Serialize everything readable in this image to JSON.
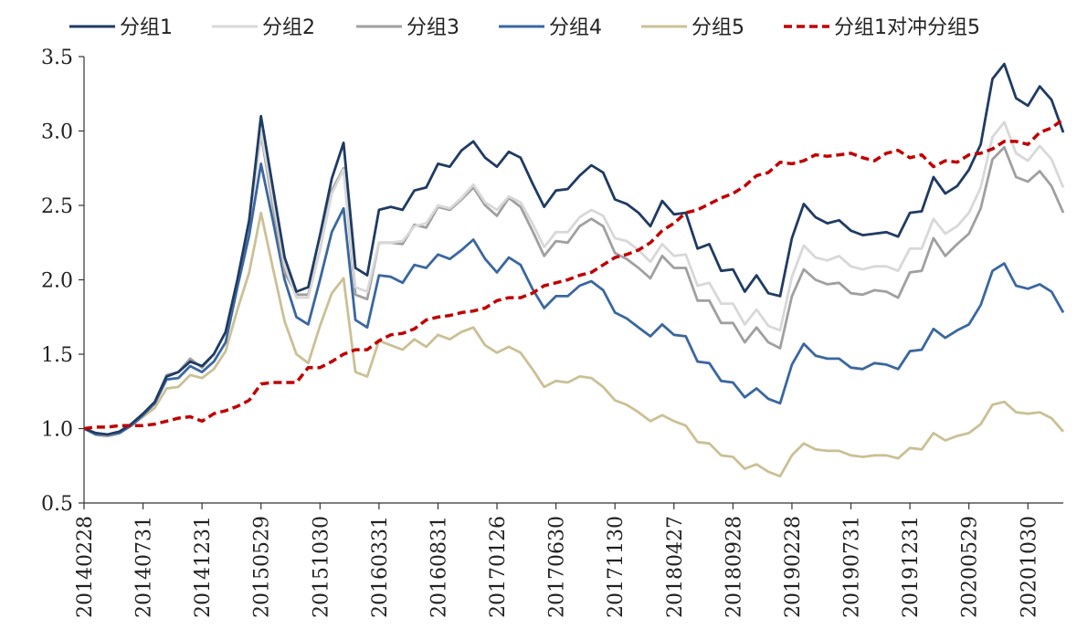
{
  "chart_data": {
    "type": "line",
    "title": "",
    "xlabel": "",
    "ylabel": "",
    "ylim": [
      0.5,
      3.5
    ],
    "yticks": [
      "0.5",
      "1.0",
      "1.5",
      "2.0",
      "2.5",
      "3.0",
      "3.5"
    ],
    "ytick_values": [
      0.5,
      1.0,
      1.5,
      2.0,
      2.5,
      3.0,
      3.5
    ],
    "xtick_labels": [
      "20140228",
      "20140731",
      "20141231",
      "20150529",
      "20151030",
      "20160331",
      "20160831",
      "20170126",
      "20170630",
      "20171130",
      "20180427",
      "20180928",
      "20190228",
      "20190731",
      "20191231",
      "20200529",
      "20201030"
    ],
    "xtick_index": [
      0,
      5,
      10,
      15,
      20,
      25,
      30,
      35,
      40,
      45,
      50,
      55,
      60,
      65,
      70,
      75,
      80
    ],
    "n_points": 84,
    "legend_position": "top",
    "grid": false,
    "series": [
      {
        "name": "分组1",
        "color": "#1f3b63",
        "dash": "solid",
        "values": [
          1.0,
          0.97,
          0.96,
          0.98,
          1.03,
          1.1,
          1.18,
          1.35,
          1.38,
          1.45,
          1.42,
          1.5,
          1.65,
          2.0,
          2.4,
          3.1,
          2.62,
          2.15,
          1.92,
          1.95,
          2.3,
          2.68,
          2.92,
          2.08,
          2.03,
          2.47,
          2.49,
          2.47,
          2.6,
          2.62,
          2.78,
          2.76,
          2.87,
          2.93,
          2.82,
          2.76,
          2.86,
          2.82,
          2.65,
          2.49,
          2.6,
          2.61,
          2.7,
          2.77,
          2.72,
          2.54,
          2.51,
          2.45,
          2.36,
          2.53,
          2.44,
          2.45,
          2.21,
          2.24,
          2.06,
          2.07,
          1.92,
          2.03,
          1.91,
          1.89,
          2.28,
          2.51,
          2.42,
          2.38,
          2.4,
          2.33,
          2.3,
          2.31,
          2.32,
          2.29,
          2.45,
          2.46,
          2.69,
          2.58,
          2.63,
          2.74,
          2.91,
          3.35,
          3.45,
          3.22,
          3.17,
          3.3,
          3.21,
          2.99
        ]
      },
      {
        "name": "分组2",
        "color": "#d8d8d8",
        "dash": "solid",
        "values": [
          1.0,
          0.97,
          0.96,
          0.98,
          1.03,
          1.1,
          1.18,
          1.35,
          1.38,
          1.45,
          1.42,
          1.5,
          1.65,
          2.0,
          2.4,
          3.0,
          2.55,
          2.1,
          1.88,
          1.88,
          2.2,
          2.58,
          2.74,
          1.95,
          1.92,
          2.25,
          2.25,
          2.26,
          2.36,
          2.38,
          2.5,
          2.48,
          2.55,
          2.64,
          2.52,
          2.47,
          2.56,
          2.52,
          2.38,
          2.22,
          2.32,
          2.32,
          2.42,
          2.47,
          2.43,
          2.28,
          2.26,
          2.2,
          2.12,
          2.24,
          2.16,
          2.17,
          1.96,
          1.98,
          1.84,
          1.84,
          1.7,
          1.8,
          1.69,
          1.66,
          2.02,
          2.23,
          2.15,
          2.13,
          2.16,
          2.09,
          2.07,
          2.09,
          2.09,
          2.06,
          2.21,
          2.21,
          2.41,
          2.31,
          2.36,
          2.45,
          2.62,
          2.96,
          3.06,
          2.85,
          2.8,
          2.9,
          2.81,
          2.62
        ]
      },
      {
        "name": "分组3",
        "color": "#a0a0a0",
        "dash": "solid",
        "values": [
          1.0,
          0.97,
          0.95,
          0.98,
          1.03,
          1.1,
          1.18,
          1.36,
          1.38,
          1.47,
          1.41,
          1.5,
          1.65,
          2.0,
          2.4,
          2.98,
          2.5,
          2.05,
          1.9,
          1.9,
          2.2,
          2.6,
          2.75,
          1.9,
          1.87,
          2.25,
          2.25,
          2.24,
          2.37,
          2.35,
          2.49,
          2.47,
          2.54,
          2.62,
          2.5,
          2.43,
          2.55,
          2.49,
          2.33,
          2.16,
          2.26,
          2.25,
          2.36,
          2.41,
          2.36,
          2.18,
          2.14,
          2.08,
          2.01,
          2.16,
          2.08,
          2.08,
          1.86,
          1.86,
          1.71,
          1.71,
          1.58,
          1.68,
          1.58,
          1.54,
          1.89,
          2.07,
          2.0,
          1.97,
          1.98,
          1.91,
          1.9,
          1.93,
          1.92,
          1.88,
          2.05,
          2.06,
          2.28,
          2.16,
          2.24,
          2.31,
          2.48,
          2.81,
          2.89,
          2.69,
          2.66,
          2.73,
          2.63,
          2.45
        ]
      },
      {
        "name": "分组4",
        "color": "#3a67a0",
        "dash": "solid",
        "values": [
          1.0,
          0.96,
          0.95,
          0.97,
          1.02,
          1.09,
          1.17,
          1.33,
          1.34,
          1.42,
          1.38,
          1.45,
          1.58,
          1.95,
          2.3,
          2.78,
          2.4,
          2.0,
          1.75,
          1.7,
          2.0,
          2.32,
          2.48,
          1.73,
          1.68,
          2.03,
          2.02,
          1.98,
          2.1,
          2.08,
          2.17,
          2.14,
          2.2,
          2.27,
          2.14,
          2.05,
          2.15,
          2.1,
          1.94,
          1.81,
          1.89,
          1.89,
          1.96,
          1.99,
          1.93,
          1.78,
          1.74,
          1.68,
          1.62,
          1.7,
          1.63,
          1.62,
          1.45,
          1.44,
          1.32,
          1.31,
          1.21,
          1.27,
          1.2,
          1.17,
          1.43,
          1.57,
          1.49,
          1.47,
          1.47,
          1.41,
          1.4,
          1.44,
          1.43,
          1.4,
          1.52,
          1.53,
          1.67,
          1.61,
          1.66,
          1.7,
          1.83,
          2.06,
          2.11,
          1.96,
          1.94,
          1.97,
          1.92,
          1.78
        ]
      },
      {
        "name": "分组5",
        "color": "#cbc095",
        "dash": "solid",
        "values": [
          1.0,
          0.97,
          0.96,
          0.97,
          1.02,
          1.08,
          1.14,
          1.27,
          1.28,
          1.36,
          1.34,
          1.4,
          1.52,
          1.8,
          2.05,
          2.45,
          2.08,
          1.72,
          1.5,
          1.44,
          1.69,
          1.91,
          2.01,
          1.38,
          1.35,
          1.59,
          1.56,
          1.53,
          1.6,
          1.55,
          1.63,
          1.6,
          1.65,
          1.68,
          1.56,
          1.51,
          1.55,
          1.51,
          1.4,
          1.28,
          1.32,
          1.31,
          1.35,
          1.34,
          1.28,
          1.19,
          1.16,
          1.11,
          1.05,
          1.09,
          1.05,
          1.02,
          0.91,
          0.9,
          0.82,
          0.81,
          0.73,
          0.76,
          0.71,
          0.68,
          0.82,
          0.9,
          0.86,
          0.85,
          0.85,
          0.82,
          0.81,
          0.82,
          0.82,
          0.8,
          0.87,
          0.86,
          0.97,
          0.92,
          0.95,
          0.97,
          1.03,
          1.16,
          1.18,
          1.11,
          1.1,
          1.11,
          1.07,
          0.98
        ]
      },
      {
        "name": "分组1对冲分组5",
        "color": "#c00000",
        "dash": "dashed",
        "values": [
          1.0,
          1.01,
          1.01,
          1.02,
          1.02,
          1.02,
          1.03,
          1.05,
          1.07,
          1.08,
          1.05,
          1.1,
          1.12,
          1.15,
          1.19,
          1.3,
          1.31,
          1.31,
          1.31,
          1.41,
          1.41,
          1.45,
          1.5,
          1.53,
          1.53,
          1.59,
          1.63,
          1.64,
          1.67,
          1.73,
          1.75,
          1.76,
          1.78,
          1.79,
          1.81,
          1.86,
          1.88,
          1.88,
          1.91,
          1.96,
          1.98,
          2.0,
          2.03,
          2.05,
          2.1,
          2.15,
          2.17,
          2.2,
          2.25,
          2.33,
          2.38,
          2.45,
          2.47,
          2.51,
          2.55,
          2.58,
          2.63,
          2.7,
          2.72,
          2.79,
          2.78,
          2.8,
          2.84,
          2.83,
          2.84,
          2.85,
          2.82,
          2.8,
          2.85,
          2.87,
          2.82,
          2.84,
          2.76,
          2.8,
          2.79,
          2.84,
          2.85,
          2.88,
          2.93,
          2.93,
          2.91,
          2.99,
          3.02,
          3.08
        ]
      }
    ]
  }
}
